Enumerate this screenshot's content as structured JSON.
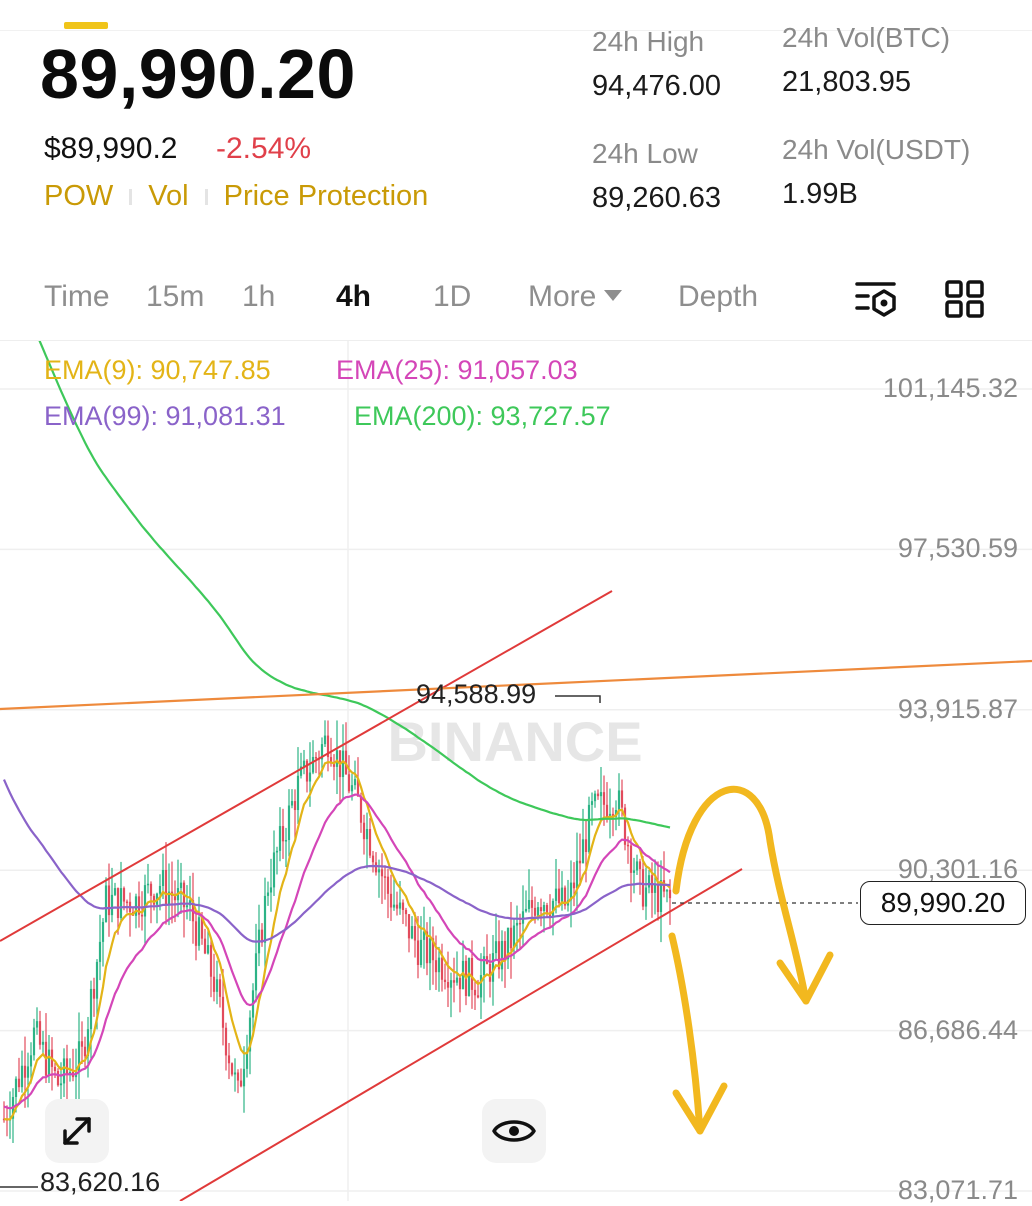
{
  "ticker": {
    "last_price": "89,990.20",
    "fiat_price": "$89,990.2",
    "change_pct": "-2.54%",
    "tags": [
      "POW",
      "Vol",
      "Price Protection"
    ]
  },
  "stats": {
    "high_label": "24h High",
    "high_value": "94,476.00",
    "low_label": "24h Low",
    "low_value": "89,260.63",
    "vol_btc_label": "24h Vol(BTC)",
    "vol_btc_value": "21,803.95",
    "vol_usdt_label": "24h Vol(USDT)",
    "vol_usdt_value": "1.99B"
  },
  "timeframe_tabs": [
    "Time",
    "15m",
    "1h",
    "4h",
    "1D",
    "More",
    "Depth"
  ],
  "active_tab": "4h",
  "toolbar_icons": [
    "indicator-settings-icon",
    "grid-layout-icon"
  ],
  "indicators": {
    "ema9": "EMA(9): 90,747.85",
    "ema25": "EMA(25): 91,057.03",
    "ema99": "EMA(99): 91,081.31",
    "ema200": "EMA(200): 93,727.57"
  },
  "colors": {
    "ema9": "#e3b417",
    "ema25": "#d446b8",
    "ema99": "#8a63c9",
    "ema200": "#3ec85a",
    "bull": "#2db386",
    "bear": "#e24b5c",
    "accent": "#c99a06",
    "channel": "#e03a3a",
    "resistance": "#ee8a3c",
    "annotation": "#f2b81f"
  },
  "chart_data": {
    "type": "line",
    "price_axis_ticks": [
      "101,145.32",
      "97,530.59",
      "93,915.87",
      "90,301.16",
      "86,686.44",
      "83,071.71"
    ],
    "ylim": [
      83071.71,
      101145.32
    ],
    "current_price": 89990.2,
    "current_price_label": "89,990.20",
    "marked_high": "94,588.99",
    "marked_low": "83,620.16",
    "watermark": "BINANCE",
    "series": [
      {
        "name": "EMA(9)",
        "value": 90747.85
      },
      {
        "name": "EMA(25)",
        "value": 91057.03
      },
      {
        "name": "EMA(99)",
        "value": 91081.31
      },
      {
        "name": "EMA(200)",
        "value": 93727.57
      }
    ]
  },
  "chart_controls": [
    "expand-icon",
    "eye-icon"
  ]
}
